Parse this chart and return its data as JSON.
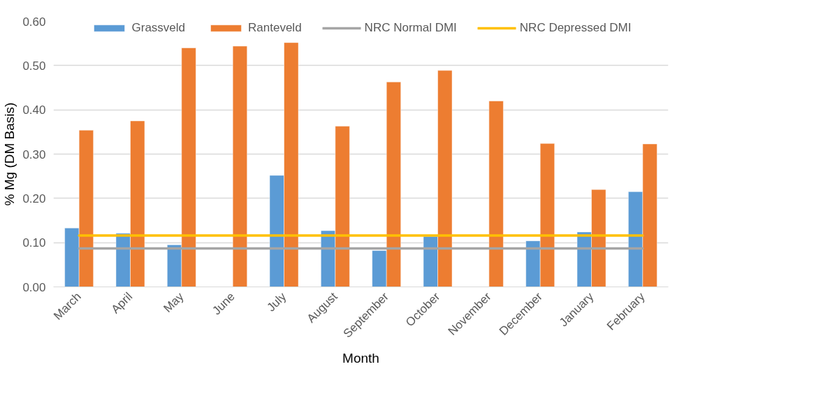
{
  "chart_data": {
    "type": "bar",
    "xlabel": "Month",
    "ylabel": "% Mg (DM Basis)",
    "categories": [
      "March",
      "April",
      "May",
      "June",
      "July",
      "August",
      "September",
      "October",
      "November",
      "December",
      "January",
      "February"
    ],
    "series": [
      {
        "name": "Grassveld",
        "color": "#5b9bd5",
        "values": [
          0.133,
          0.121,
          0.095,
          null,
          0.252,
          0.127,
          0.082,
          0.114,
          null,
          0.104,
          0.124,
          0.215
        ]
      },
      {
        "name": "Ranteveld",
        "color": "#ed7d31",
        "values": [
          0.354,
          0.375,
          0.54,
          0.544,
          0.552,
          0.363,
          0.463,
          0.489,
          0.42,
          0.324,
          0.22,
          0.323
        ]
      },
      {
        "name": "NRC Normal DMI",
        "color": "#a5a5a5",
        "type": "line",
        "values": [
          0.087,
          0.087,
          0.087,
          0.087,
          0.087,
          0.087,
          0.087,
          0.087,
          0.087,
          0.087,
          0.087,
          0.087
        ]
      },
      {
        "name": "NRC Depressed DMI",
        "color": "#ffc000",
        "type": "line",
        "values": [
          0.116,
          0.116,
          0.116,
          0.116,
          0.116,
          0.116,
          0.116,
          0.116,
          0.116,
          0.116,
          0.116,
          0.116
        ]
      }
    ],
    "ylim": [
      0,
      0.6
    ],
    "yticks": [
      {
        "value": 0,
        "label": "0.00"
      },
      {
        "value": 0.1,
        "label": "0.10"
      },
      {
        "value": 0.2,
        "label": "0.20"
      },
      {
        "value": 0.3,
        "label": "0.30"
      },
      {
        "value": 0.4,
        "label": "0.40"
      },
      {
        "value": 0.5,
        "label": "0.50"
      },
      {
        "value": 0.6,
        "label": "0.60"
      }
    ],
    "grid": "y",
    "legend": "top"
  }
}
